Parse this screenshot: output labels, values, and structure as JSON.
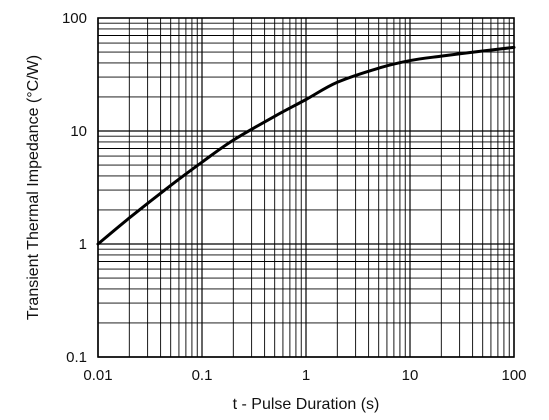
{
  "chart_data": {
    "type": "line",
    "title": "",
    "xlabel": "t - Pulse Duration (s)",
    "ylabel": "Transient Thermal Impedance (°C/W)",
    "xscale": "log",
    "yscale": "log",
    "xlim": [
      0.01,
      100
    ],
    "ylim": [
      0.1,
      100
    ],
    "grid": true,
    "legend": "none",
    "x_tick_labels": [
      "0.01",
      "0.1",
      "1",
      "10",
      "100"
    ],
    "y_tick_labels": [
      "0.1",
      "1",
      "10",
      "100"
    ],
    "series": [
      {
        "x": [
          0.01,
          0.02,
          0.05,
          0.1,
          0.2,
          0.5,
          1,
          2,
          5,
          10,
          20,
          50,
          100
        ],
        "y": [
          1.0,
          1.7,
          3.3,
          5.3,
          8.3,
          13.5,
          19,
          27,
          36,
          42,
          46,
          51,
          55
        ]
      }
    ],
    "colors": {
      "curve": "#000000",
      "grid": "#000000",
      "frame": "#000000",
      "text": "#111111"
    }
  }
}
